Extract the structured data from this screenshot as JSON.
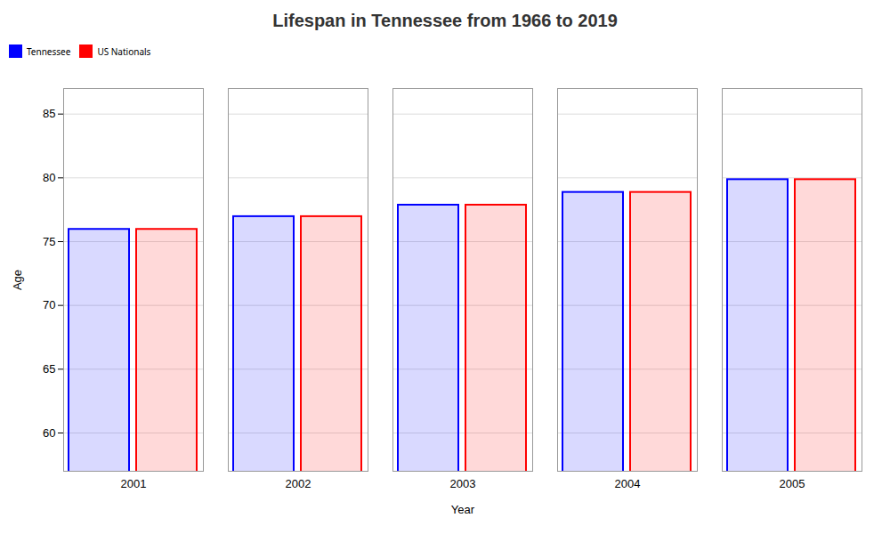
{
  "chart_data": {
    "type": "bar",
    "title": "Lifespan in Tennessee from 1966 to 2019",
    "xlabel": "Year",
    "ylabel": "Age",
    "categories": [
      "2001",
      "2002",
      "2003",
      "2004",
      "2005"
    ],
    "series": [
      {
        "name": "Tennessee",
        "color": "#0000ff",
        "values": [
          76.1,
          77.1,
          78.0,
          79.0,
          80.0
        ]
      },
      {
        "name": "US Nationals",
        "color": "#ff0000",
        "values": [
          76.1,
          77.1,
          78.0,
          79.0,
          80.0
        ]
      }
    ],
    "ylim": [
      57,
      87
    ],
    "yticks": [
      60,
      65,
      70,
      75,
      80,
      85
    ],
    "grid": true,
    "legend": "top"
  }
}
